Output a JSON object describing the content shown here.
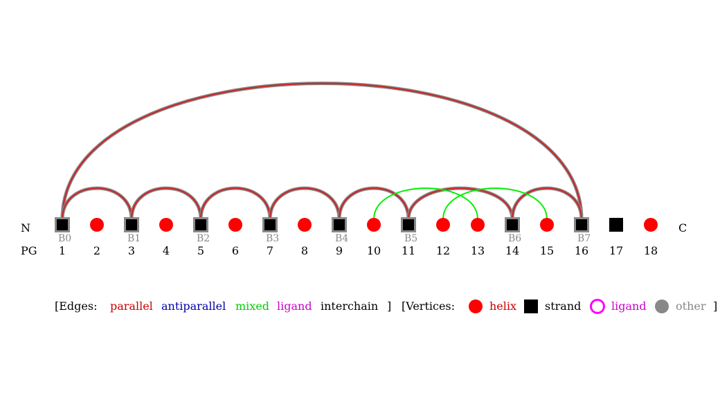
{
  "labels": {
    "n_terminus": "N",
    "c_terminus": "C",
    "pg": "PG"
  },
  "vertices": [
    {
      "pg": "1",
      "type": "strand",
      "label": "B0"
    },
    {
      "pg": "2",
      "type": "helix",
      "label": ""
    },
    {
      "pg": "3",
      "type": "strand",
      "label": "B1"
    },
    {
      "pg": "4",
      "type": "helix",
      "label": ""
    },
    {
      "pg": "5",
      "type": "strand",
      "label": "B2"
    },
    {
      "pg": "6",
      "type": "helix",
      "label": ""
    },
    {
      "pg": "7",
      "type": "strand",
      "label": "B3"
    },
    {
      "pg": "8",
      "type": "helix",
      "label": ""
    },
    {
      "pg": "9",
      "type": "strand",
      "label": "B4"
    },
    {
      "pg": "10",
      "type": "helix",
      "label": ""
    },
    {
      "pg": "11",
      "type": "strand",
      "label": "B5"
    },
    {
      "pg": "12",
      "type": "helix",
      "label": ""
    },
    {
      "pg": "13",
      "type": "helix",
      "label": ""
    },
    {
      "pg": "14",
      "type": "strand",
      "label": "B6"
    },
    {
      "pg": "15",
      "type": "helix",
      "label": ""
    },
    {
      "pg": "16",
      "type": "strand",
      "label": "B7"
    },
    {
      "pg": "17",
      "type": "strand-free",
      "label": ""
    },
    {
      "pg": "18",
      "type": "helix",
      "label": ""
    }
  ],
  "edges": [
    {
      "from": 1,
      "to": 16,
      "type": "parallel"
    },
    {
      "from": 1,
      "to": 3,
      "type": "parallel"
    },
    {
      "from": 3,
      "to": 5,
      "type": "parallel"
    },
    {
      "from": 5,
      "to": 7,
      "type": "parallel"
    },
    {
      "from": 7,
      "to": 9,
      "type": "parallel"
    },
    {
      "from": 9,
      "to": 11,
      "type": "parallel"
    },
    {
      "from": 11,
      "to": 14,
      "type": "parallel"
    },
    {
      "from": 14,
      "to": 16,
      "type": "parallel"
    },
    {
      "from": 10,
      "to": 13,
      "type": "mixed"
    },
    {
      "from": 12,
      "to": 15,
      "type": "mixed"
    }
  ],
  "legend": {
    "edges_open": "[Edges:",
    "edge_items": [
      {
        "key": "parallel",
        "label": "parallel",
        "color": "#cc0000"
      },
      {
        "key": "antiparallel",
        "label": "antiparallel",
        "color": "#0000aa"
      },
      {
        "key": "mixed",
        "label": "mixed",
        "color": "#00cc00"
      },
      {
        "key": "ligand",
        "label": "ligand",
        "color": "#cc00cc"
      },
      {
        "key": "interchain",
        "label": "interchain",
        "color": "#000000"
      }
    ],
    "edges_close": "]",
    "vertices_open": "[Vertices:",
    "vertex_items": [
      {
        "key": "helix",
        "label": "helix",
        "color": "#cc0000",
        "icon": "red-circle-icon"
      },
      {
        "key": "strand",
        "label": "strand",
        "color": "#000000",
        "icon": "black-square-icon"
      },
      {
        "key": "ligand",
        "label": "ligand",
        "color": "#cc00cc",
        "icon": "magenta-ring-icon"
      },
      {
        "key": "other",
        "label": "other",
        "color": "#888888",
        "icon": "gray-circle-icon"
      }
    ],
    "vertices_close": "]"
  },
  "colors": {
    "helix": "#ff0000",
    "strand": "#000000",
    "strand_border": "#888888",
    "parallel_edge": "#cc2222",
    "parallel_edge_outline": "#888888",
    "mixed_edge": "#00ee00",
    "ligand_ring": "#ff00ff",
    "other_dot": "#888888",
    "strand_label": "#888888"
  }
}
